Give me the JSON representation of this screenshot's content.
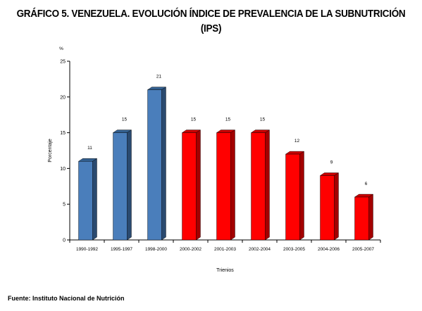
{
  "title_line1": "GRÁFICO 5. VENEZUELA. EVOLUCIÓN ÍNDICE DE PREVALENCIA DE LA SUBNUTRICIÓN",
  "title_line2": "(IPS)",
  "source": "Fuente: Instituto Nacional de Nutrición",
  "colors": {
    "blue_front": "#4A7EBB",
    "blue_side": "#2A4A70",
    "blue_top": "#335F8F",
    "red_front": "#FF0000",
    "red_side": "#A30000",
    "red_top": "#C80000",
    "axis": "#000000"
  },
  "chart_data": {
    "type": "bar",
    "title": "GRÁFICO 5. VENEZUELA. EVOLUCIÓN ÍNDICE DE PREVALENCIA DE LA SUBNUTRICIÓN (IPS)",
    "xlabel": "Trienios",
    "ylabel": "Porcentaje",
    "yunit": "%",
    "ylim": [
      0,
      25
    ],
    "yticks": [
      0,
      5,
      10,
      15,
      20,
      25
    ],
    "grid": false,
    "legend": "none",
    "categories": [
      "1990-1992",
      "1995-1997",
      "1998-2000",
      "2000-2002",
      "2001-2003",
      "2002-2004",
      "2003-2005",
      "2004-2006",
      "2005-2007"
    ],
    "values": [
      11,
      15,
      21,
      15,
      15,
      15,
      12,
      9,
      6
    ],
    "data_labels": [
      "11",
      "15",
      "21",
      "15",
      "15",
      "15",
      "12",
      "9",
      "6"
    ],
    "bar_colors": [
      "blue",
      "blue",
      "blue",
      "red",
      "red",
      "red",
      "red",
      "red",
      "red"
    ]
  }
}
